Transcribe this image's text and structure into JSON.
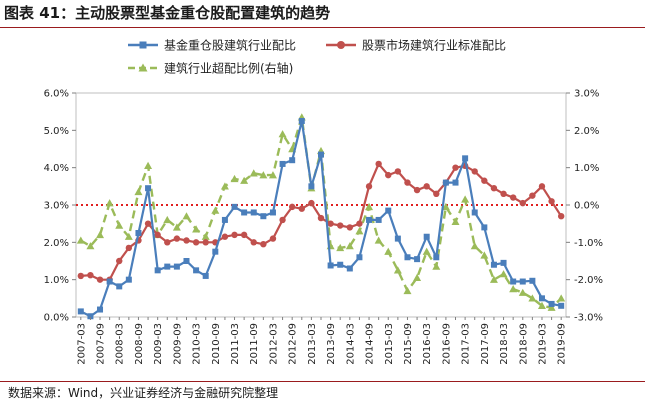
{
  "title": "图表 41：主动股票型基金重仓股配置建筑的趋势",
  "source": "数据来源：Wind，兴业证券经济与金融研究院整理",
  "chart_data": {
    "type": "line",
    "categories": [
      "2007-03",
      "2007-06",
      "2007-09",
      "2007-12",
      "2008-03",
      "2008-06",
      "2008-09",
      "2008-12",
      "2009-03",
      "2009-06",
      "2009-09",
      "2009-12",
      "2010-03",
      "2010-06",
      "2010-09",
      "2010-12",
      "2011-03",
      "2011-06",
      "2011-09",
      "2011-12",
      "2012-03",
      "2012-06",
      "2012-09",
      "2012-12",
      "2013-03",
      "2013-06",
      "2013-09",
      "2013-12",
      "2014-03",
      "2014-06",
      "2014-09",
      "2014-12",
      "2015-03",
      "2015-06",
      "2015-09",
      "2015-12",
      "2016-03",
      "2016-06",
      "2016-09",
      "2016-12",
      "2017-03",
      "2017-06",
      "2017-09",
      "2017-12",
      "2018-03",
      "2018-06",
      "2018-09",
      "2018-12",
      "2019-03",
      "2019-06",
      "2019-09"
    ],
    "x_tick_labels": [
      "2007-03",
      "2007-09",
      "2008-03",
      "2008-09",
      "2009-03",
      "2009-09",
      "2010-03",
      "2010-09",
      "2011-03",
      "2011-09",
      "2012-03",
      "2012-09",
      "2013-03",
      "2013-09",
      "2014-03",
      "2014-09",
      "2015-03",
      "2015-09",
      "2016-03",
      "2016-09",
      "2017-03",
      "2017-09",
      "2018-03",
      "2018-09",
      "2019-03",
      "2019-09"
    ],
    "left_axis": {
      "min": 0,
      "max": 6,
      "step": 1,
      "tick_labels": [
        "0.0%",
        "1.0%",
        "2.0%",
        "3.0%",
        "4.0%",
        "5.0%",
        "6.0%"
      ]
    },
    "right_axis": {
      "min": -3,
      "max": 3,
      "step": 1,
      "tick_labels": [
        "-3.0%",
        "-2.0%",
        "-1.0%",
        "0.0%",
        "1.0%",
        "2.0%",
        "3.0%"
      ]
    },
    "reference_line": {
      "axis": "right",
      "value": 0,
      "color": "#e02020",
      "style": "dotted"
    },
    "legend_position": "top",
    "series": [
      {
        "name": "基金重仓股建筑行业配比",
        "axis": "left",
        "color": "#4a7ebb",
        "marker": "square",
        "values": [
          0.15,
          0.02,
          0.2,
          0.95,
          0.82,
          1.0,
          2.25,
          3.45,
          1.25,
          1.35,
          1.35,
          1.5,
          1.25,
          1.1,
          1.75,
          2.6,
          2.95,
          2.8,
          2.8,
          2.7,
          2.8,
          4.1,
          4.2,
          5.25,
          3.5,
          4.35,
          1.38,
          1.4,
          1.3,
          1.6,
          2.6,
          2.6,
          2.85,
          2.1,
          1.6,
          1.55,
          2.15,
          1.6,
          3.6,
          3.6,
          4.25,
          2.8,
          2.4,
          1.4,
          1.45,
          0.95,
          0.95,
          0.97,
          0.5,
          0.35,
          0.3
        ]
      },
      {
        "name": "股票市场建筑行业标准配比",
        "axis": "left",
        "color": "#c0504d",
        "marker": "circle",
        "values": [
          1.1,
          1.12,
          1.0,
          1.0,
          1.5,
          1.85,
          2.05,
          2.5,
          2.2,
          2.0,
          2.1,
          2.05,
          2.0,
          2.0,
          2.0,
          2.15,
          2.2,
          2.2,
          2.0,
          1.95,
          2.1,
          2.6,
          2.95,
          2.9,
          3.05,
          2.65,
          2.5,
          2.45,
          2.4,
          2.5,
          3.5,
          4.1,
          3.8,
          3.9,
          3.6,
          3.4,
          3.5,
          3.3,
          3.6,
          4.0,
          4.05,
          3.9,
          3.65,
          3.45,
          3.3,
          3.2,
          3.05,
          3.25,
          3.5,
          3.1,
          2.7
        ]
      },
      {
        "name": "建筑行业超配比例(右轴)",
        "axis": "right",
        "color": "#9bbb59",
        "marker": "triangle",
        "style": "dashed",
        "values": [
          -0.95,
          -1.1,
          -0.8,
          0.05,
          -0.55,
          -0.85,
          0.35,
          1.05,
          -0.8,
          -0.4,
          -0.6,
          -0.3,
          -0.65,
          -0.85,
          -0.15,
          0.5,
          0.7,
          0.65,
          0.85,
          0.8,
          0.8,
          1.9,
          1.5,
          2.35,
          0.45,
          1.45,
          -1.1,
          -1.15,
          -1.1,
          -0.7,
          -0.05,
          -0.95,
          -1.25,
          -1.75,
          -2.3,
          -1.95,
          -1.25,
          -1.65,
          -0.05,
          -0.45,
          0.15,
          -1.1,
          -1.35,
          -2.0,
          -1.85,
          -2.25,
          -2.35,
          -2.5,
          -2.7,
          -2.75,
          -2.5
        ]
      }
    ]
  }
}
